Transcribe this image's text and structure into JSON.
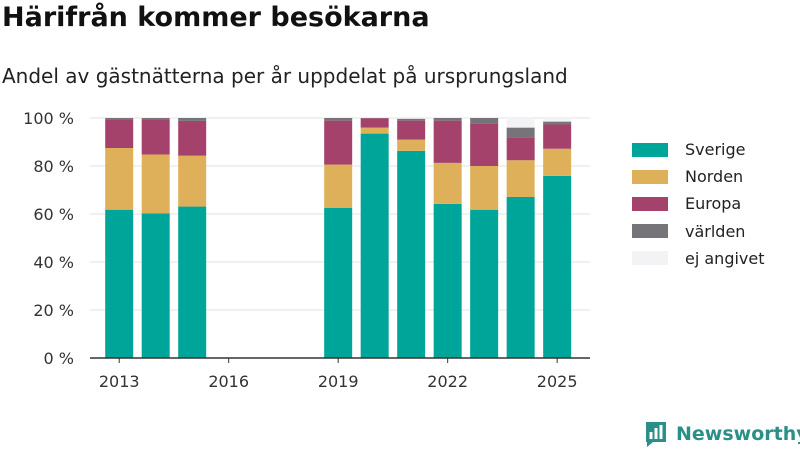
{
  "title": "Härifrån kommer besökarna",
  "subtitle": "Andel av gästnätterna per år uppdelat på ursprungsland",
  "brand": "Newsworthy",
  "chart_data": {
    "type": "bar",
    "stacked": true,
    "x": [
      2013,
      2014,
      2015,
      2019,
      2020,
      2021,
      2022,
      2023,
      2024,
      2025
    ],
    "x_ticks": [
      2013,
      2016,
      2019,
      2022,
      2025
    ],
    "x_tick_labels": [
      "2013",
      "2016",
      "2019",
      "2022",
      "2025"
    ],
    "ylim": [
      0,
      100
    ],
    "y_ticks": [
      0,
      20,
      40,
      60,
      80,
      100
    ],
    "y_tick_labels": [
      "0 %",
      "20 %",
      "40 %",
      "60 %",
      "80 %",
      "100 %"
    ],
    "grid": true,
    "legend_position": "right",
    "series": [
      {
        "name": "Sverige",
        "color": "#00a59a",
        "values": [
          61.8,
          60.3,
          63.1,
          62.6,
          93.5,
          86.3,
          64.2,
          61.8,
          67.1,
          75.9
        ]
      },
      {
        "name": "Norden",
        "color": "#deb05a",
        "values": [
          25.7,
          24.5,
          21.2,
          18.0,
          2.5,
          4.7,
          17.1,
          18.2,
          15.3,
          11.3
        ]
      },
      {
        "name": "Europa",
        "color": "#a4426b",
        "values": [
          11.9,
          14.6,
          14.5,
          18.3,
          3.9,
          7.9,
          17.6,
          17.8,
          9.6,
          10.1
        ]
      },
      {
        "name": "världen",
        "color": "#777479",
        "values": [
          0.6,
          0.6,
          1.2,
          1.1,
          0.1,
          0.8,
          1.1,
          2.2,
          4.0,
          1.2
        ]
      },
      {
        "name": "ej angivet",
        "color": "#f3f2f4",
        "values": [
          0,
          0,
          0,
          0,
          0,
          0.3,
          0,
          0,
          4.0,
          1.5
        ]
      }
    ]
  }
}
